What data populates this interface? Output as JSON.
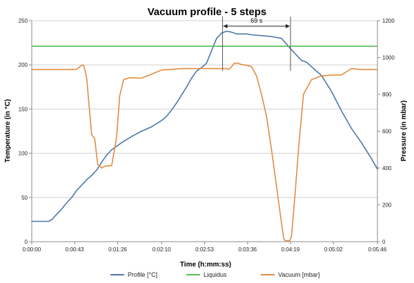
{
  "chart_data": {
    "type": "line",
    "title": "Vacuum profile  - 5 steps",
    "xlabel": "Time (h:mm:ss)",
    "ylabel": "Temperature (in °C)",
    "y2label": "Pressure (in mbar)",
    "xlim": [
      0,
      346
    ],
    "ylim": [
      0,
      250
    ],
    "y2lim": [
      0,
      1200
    ],
    "xticks": [
      0,
      43,
      86,
      130,
      173,
      216,
      259,
      302,
      346
    ],
    "xtick_labels": [
      "0:00:00",
      "0:00:43",
      "0:01:26",
      "0:02:10",
      "0:02:53",
      "0:03:36",
      "0:04:19",
      "0:05:02",
      "0:05:46"
    ],
    "yticks": [
      0,
      50,
      100,
      150,
      200,
      250
    ],
    "ytick_labels": [
      "0",
      "50",
      "100",
      "150",
      "200",
      "250"
    ],
    "y2ticks": [
      0,
      200,
      400,
      600,
      800,
      1000,
      1200
    ],
    "y2tick_labels": [
      "0",
      "200",
      "400",
      "600",
      "800",
      "1000",
      "1200"
    ],
    "grid": "horizontal",
    "legend_position": "bottom",
    "series": [
      {
        "name": "Profile [°C]",
        "axis": "left",
        "color": "#4a77a8",
        "x": [
          0,
          10,
          17,
          20,
          25,
          30,
          35,
          40,
          45,
          50,
          55,
          60,
          65,
          70,
          75,
          80,
          90,
          100,
          110,
          120,
          130,
          135,
          140,
          145,
          150,
          155,
          160,
          165,
          170,
          175,
          180,
          185,
          190,
          195,
          200,
          205,
          210,
          215,
          220,
          230,
          240,
          250,
          260,
          265,
          270,
          275,
          280,
          290,
          300,
          310,
          320,
          330,
          340,
          346
        ],
        "values": [
          23,
          23,
          23,
          25,
          31,
          37,
          44,
          50,
          58,
          64,
          70,
          75,
          81,
          90,
          98,
          104,
          112,
          119,
          125,
          130,
          137,
          142,
          149,
          157,
          166,
          175,
          185,
          193,
          197,
          202,
          216,
          230,
          236,
          238,
          237,
          235,
          235,
          235,
          234,
          233,
          232,
          230,
          217,
          211,
          205,
          203,
          198,
          188,
          170,
          148,
          128,
          112,
          94,
          82
        ]
      },
      {
        "name": "Liquidus",
        "axis": "left",
        "color": "#55bb55",
        "x": [
          0,
          346
        ],
        "values": [
          221,
          221
        ]
      },
      {
        "name": "Vacuum [mbar]",
        "axis": "right",
        "color": "#e38b3e",
        "x": [
          0,
          10,
          20,
          30,
          40,
          45,
          50,
          52,
          55,
          58,
          60,
          63,
          66,
          70,
          73,
          76,
          80,
          85,
          88,
          92,
          98,
          110,
          130,
          150,
          165,
          170,
          175,
          180,
          185,
          190,
          195,
          197,
          200,
          203,
          207,
          210,
          215,
          220,
          225,
          230,
          235,
          240,
          245,
          250,
          252,
          253,
          256,
          258,
          260,
          263,
          267,
          272,
          280,
          290,
          300,
          310,
          320,
          330,
          340,
          346
        ],
        "values": [
          935,
          935,
          935,
          935,
          935,
          936,
          958,
          958,
          890,
          700,
          580,
          560,
          420,
          400,
          410,
          412,
          412,
          570,
          790,
          880,
          890,
          888,
          932,
          940,
          940,
          940,
          940,
          940,
          940,
          940,
          940,
          935,
          950,
          970,
          968,
          962,
          958,
          950,
          900,
          800,
          680,
          500,
          300,
          100,
          25,
          8,
          5,
          5,
          30,
          220,
          500,
          800,
          880,
          900,
          905,
          905,
          940,
          935,
          935,
          935
        ]
      }
    ],
    "annotations": [
      {
        "type": "double_arrow",
        "from_x": 191,
        "to_x": 259,
        "y2": 1170,
        "label": "69 s"
      }
    ]
  }
}
